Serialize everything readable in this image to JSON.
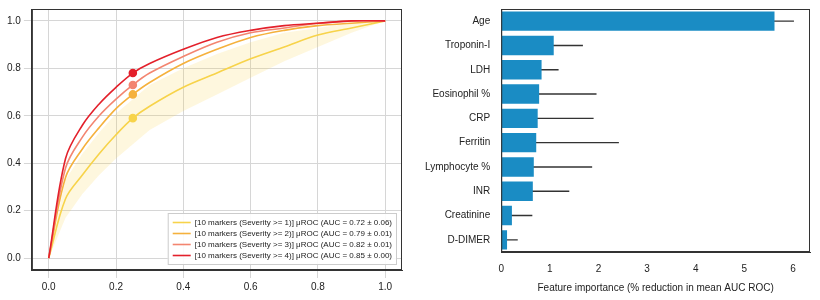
{
  "chart_data": [
    {
      "type": "line",
      "xlim": [
        -0.05,
        1.05
      ],
      "ylim": [
        -0.05,
        1.05
      ],
      "xticks": [
        {
          "value": 0,
          "label": "0.0"
        },
        {
          "value": 0.2,
          "label": "0.2"
        },
        {
          "value": 0.4,
          "label": "0.4"
        },
        {
          "value": 0.6,
          "label": "0.6"
        },
        {
          "value": 0.8,
          "label": "0.8"
        },
        {
          "value": 1,
          "label": "1.0"
        }
      ],
      "yticks": [
        {
          "value": 0,
          "label": "0.0"
        },
        {
          "value": 0.2,
          "label": "0.2"
        },
        {
          "value": 0.4,
          "label": "0.4"
        },
        {
          "value": 0.6,
          "label": "0.6"
        },
        {
          "value": 0.8,
          "label": "0.8"
        },
        {
          "value": 1,
          "label": "1.0"
        }
      ],
      "grid": true,
      "legend": "lower right",
      "marker": "circle",
      "marker_x": 0.25,
      "x": [
        0,
        0.05,
        0.1,
        0.15,
        0.2,
        0.25,
        0.3,
        0.4,
        0.5,
        0.6,
        0.7,
        0.8,
        0.9,
        1.0
      ],
      "series": [
        {
          "name": "[10 markers (Severity >= 1)] μROC (AUC = 0.72 ± 0.06)",
          "color": "#f7d34a",
          "values": [
            0,
            0.25,
            0.35,
            0.44,
            0.52,
            0.59,
            0.64,
            0.72,
            0.78,
            0.84,
            0.89,
            0.94,
            0.97,
            1.0
          ],
          "lower": [
            0,
            0.17,
            0.27,
            0.35,
            0.42,
            0.48,
            0.54,
            0.62,
            0.69,
            0.76,
            0.83,
            0.89,
            0.95,
            1.0
          ],
          "upper": [
            0,
            0.33,
            0.44,
            0.53,
            0.61,
            0.67,
            0.73,
            0.8,
            0.86,
            0.91,
            0.95,
            0.97,
            0.99,
            1.0
          ]
        },
        {
          "name": "[10 markers (Severity >= 2)] μROC (AUC = 0.79 ± 0.01)",
          "color": "#f5b13c",
          "values": [
            0,
            0.34,
            0.46,
            0.55,
            0.63,
            0.69,
            0.74,
            0.82,
            0.88,
            0.93,
            0.96,
            0.98,
            0.99,
            1.0
          ]
        },
        {
          "name": "[10 markers (Severity >= 3)] μROC (AUC = 0.82 ± 0.01)",
          "color": "#f38570",
          "values": [
            0,
            0.38,
            0.51,
            0.6,
            0.67,
            0.73,
            0.78,
            0.85,
            0.91,
            0.95,
            0.97,
            0.99,
            1.0,
            1.0
          ]
        },
        {
          "name": "[10 markers (Severity >= 4)] μROC (AUC = 0.85 ± 0.00)",
          "color": "#e3202b",
          "values": [
            0,
            0.42,
            0.56,
            0.65,
            0.72,
            0.78,
            0.82,
            0.88,
            0.93,
            0.96,
            0.98,
            0.99,
            1.0,
            1.0
          ]
        }
      ]
    },
    {
      "type": "bar",
      "orientation": "horizontal",
      "categories": [
        "Age",
        "Troponin-I",
        "LDH",
        "Eosinophil %",
        "CRP",
        "Ferritin",
        "Lymphocyte %",
        "INR",
        "Creatinine",
        "D-DIMER"
      ],
      "values": [
        5.62,
        1.08,
        0.83,
        0.78,
        0.75,
        0.72,
        0.67,
        0.65,
        0.22,
        0.12
      ],
      "errors": [
        0.4,
        0.6,
        0.35,
        1.18,
        1.15,
        1.7,
        1.2,
        0.75,
        0.42,
        0.22
      ],
      "color": "#1a8cc4",
      "xlabel": "Feature importance (% reduction in mean AUC ROC)",
      "xlim": [
        0,
        6.35
      ],
      "xticks": [
        0,
        1,
        2,
        3,
        4,
        5,
        6
      ],
      "grid": false
    }
  ]
}
